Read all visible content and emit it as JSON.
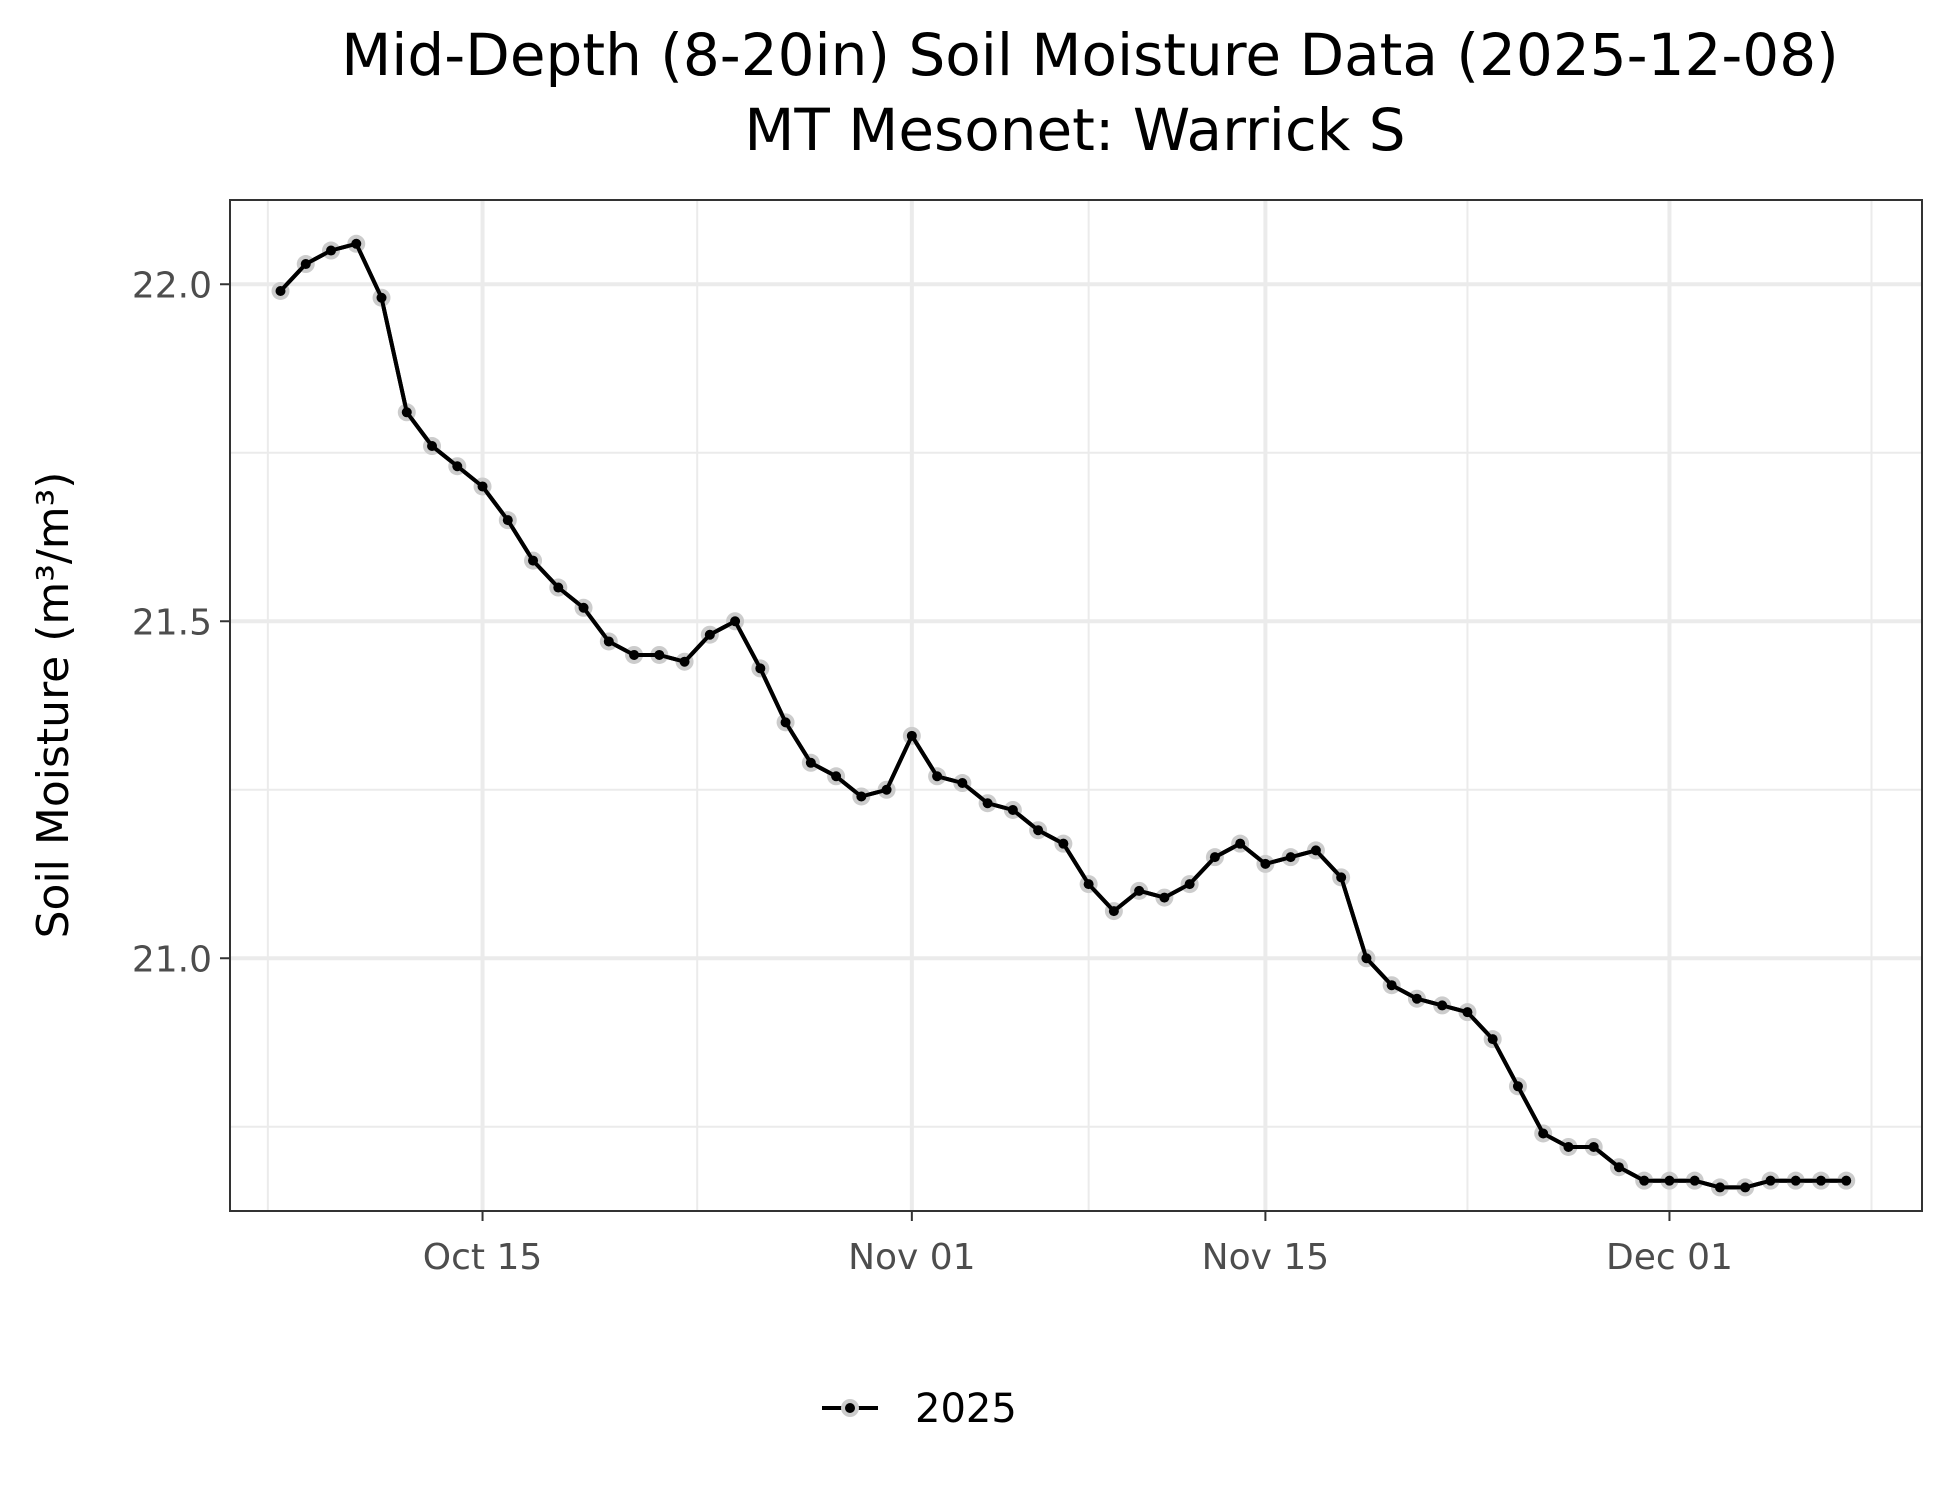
{
  "chart_data": {
    "type": "line",
    "title": "Mid-Depth (8-20in) Soil Moisture Data (2025-12-08)",
    "subtitle": "MT Mesonet: Warrick S",
    "xlabel": "",
    "ylabel": "Soil Moisture (m³/m³)",
    "xlim": [
      "2025-10-05",
      "2025-12-11"
    ],
    "ylim": [
      20.625,
      22.125
    ],
    "x_ticks": [
      {
        "date": "2025-10-15",
        "label": "Oct 15"
      },
      {
        "date": "2025-11-01",
        "label": "Nov 01"
      },
      {
        "date": "2025-11-15",
        "label": "Nov 15"
      },
      {
        "date": "2025-12-01",
        "label": "Dec 01"
      }
    ],
    "y_ticks": [
      {
        "value": 21.0,
        "label": "21.0"
      },
      {
        "value": 21.5,
        "label": "21.5"
      },
      {
        "value": 22.0,
        "label": "22.0"
      }
    ],
    "grid": true,
    "legend": {
      "position": "bottom",
      "entries": [
        "2025"
      ]
    },
    "colors": {
      "line": "#000000",
      "halo": "#cccccc",
      "grid": "#ebebeb",
      "border": "#333333"
    },
    "series": [
      {
        "name": "2025",
        "x": [
          "2025-10-07",
          "2025-10-08",
          "2025-10-09",
          "2025-10-10",
          "2025-10-11",
          "2025-10-12",
          "2025-10-13",
          "2025-10-14",
          "2025-10-15",
          "2025-10-16",
          "2025-10-17",
          "2025-10-18",
          "2025-10-19",
          "2025-10-20",
          "2025-10-21",
          "2025-10-22",
          "2025-10-23",
          "2025-10-24",
          "2025-10-25",
          "2025-10-26",
          "2025-10-27",
          "2025-10-28",
          "2025-10-29",
          "2025-10-30",
          "2025-10-31",
          "2025-11-01",
          "2025-11-02",
          "2025-11-03",
          "2025-11-04",
          "2025-11-05",
          "2025-11-06",
          "2025-11-07",
          "2025-11-08",
          "2025-11-09",
          "2025-11-10",
          "2025-11-11",
          "2025-11-12",
          "2025-11-13",
          "2025-11-14",
          "2025-11-15",
          "2025-11-16",
          "2025-11-17",
          "2025-11-18",
          "2025-11-19",
          "2025-11-20",
          "2025-11-21",
          "2025-11-22",
          "2025-11-23",
          "2025-11-24",
          "2025-11-25",
          "2025-11-26",
          "2025-11-27",
          "2025-11-28",
          "2025-11-29",
          "2025-11-30",
          "2025-12-01",
          "2025-12-02",
          "2025-12-03",
          "2025-12-04",
          "2025-12-05",
          "2025-12-06",
          "2025-12-07",
          "2025-12-08"
        ],
        "values": [
          21.99,
          22.03,
          22.05,
          22.06,
          21.98,
          21.81,
          21.76,
          21.73,
          21.7,
          21.65,
          21.59,
          21.55,
          21.52,
          21.47,
          21.45,
          21.45,
          21.44,
          21.48,
          21.5,
          21.43,
          21.35,
          21.29,
          21.27,
          21.24,
          21.25,
          21.33,
          21.27,
          21.26,
          21.23,
          21.22,
          21.19,
          21.17,
          21.11,
          21.07,
          21.1,
          21.09,
          21.11,
          21.15,
          21.17,
          21.14,
          21.15,
          21.16,
          21.12,
          21.0,
          20.96,
          20.94,
          20.93,
          20.92,
          20.88,
          20.81,
          20.74,
          20.72,
          20.72,
          20.69,
          20.67,
          20.67,
          20.67,
          20.66,
          20.66,
          20.67,
          20.67,
          20.67,
          20.67
        ]
      }
    ]
  }
}
